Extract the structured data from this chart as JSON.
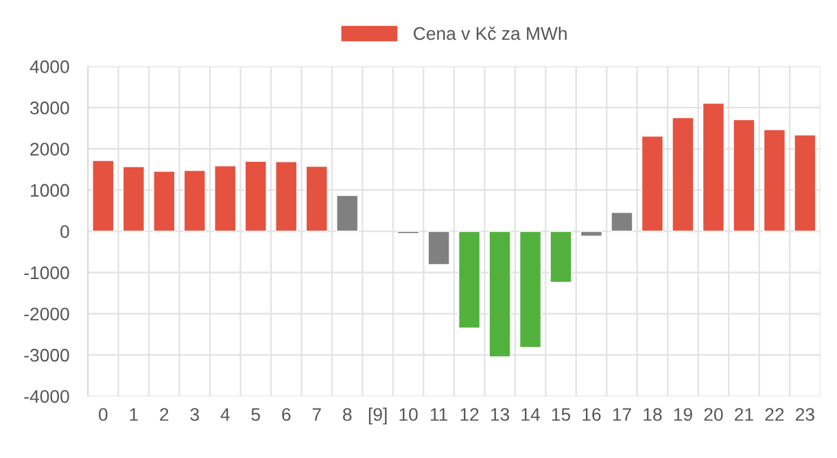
{
  "chart_data": {
    "type": "bar",
    "categories": [
      "0",
      "1",
      "2",
      "3",
      "4",
      "5",
      "6",
      "7",
      "8",
      "[9]",
      "10",
      "11",
      "12",
      "13",
      "14",
      "15",
      "16",
      "17",
      "18",
      "19",
      "20",
      "21",
      "22",
      "23"
    ],
    "series": [
      {
        "name": "Cena v Kč za MWh",
        "color": "#e5523f",
        "values": [
          1720,
          1570,
          1460,
          1480,
          1590,
          1700,
          1690,
          1580,
          870,
          null,
          -60,
          -810,
          -2350,
          -3050,
          -2820,
          -1240,
          -120,
          460,
          2310,
          2760,
          3110,
          2710,
          2470,
          2340
        ],
        "colors": [
          "#e5523f",
          "#e5523f",
          "#e5523f",
          "#e5523f",
          "#e5523f",
          "#e5523f",
          "#e5523f",
          "#e5523f",
          "#808080",
          "#808080",
          "#808080",
          "#808080",
          "#52b13d",
          "#52b13d",
          "#52b13d",
          "#52b13d",
          "#808080",
          "#808080",
          "#e5523f",
          "#e5523f",
          "#e5523f",
          "#e5523f",
          "#e5523f",
          "#e5523f"
        ]
      }
    ],
    "ylim": [
      -4000,
      4000
    ],
    "yticks": [
      -4000,
      -3000,
      -2000,
      -1000,
      0,
      1000,
      2000,
      3000,
      4000
    ],
    "grid": true,
    "legend": "top"
  }
}
